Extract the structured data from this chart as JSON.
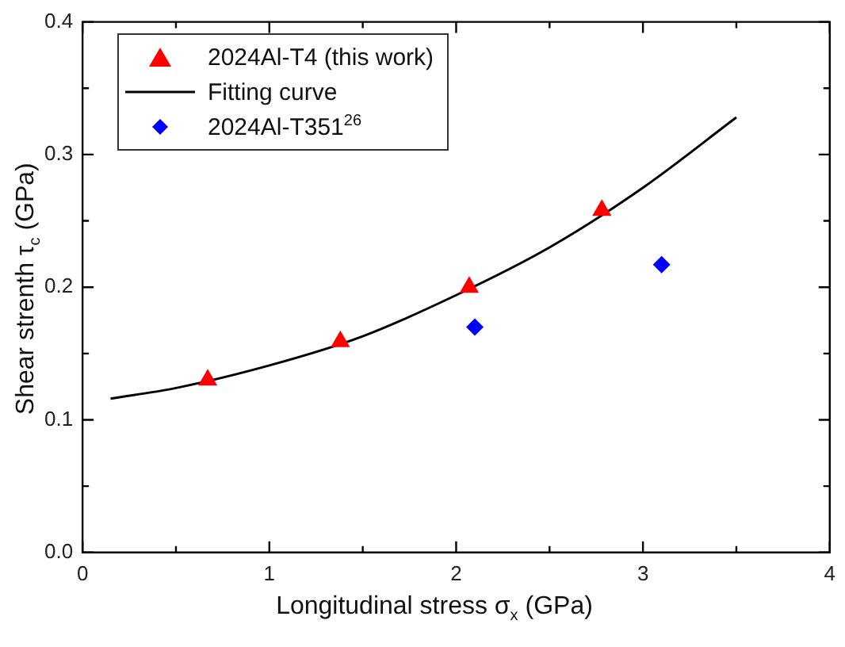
{
  "chart_data": {
    "type": "scatter",
    "xlabel": "Longitudinal stress  σ$_{x}$ (GPa)",
    "ylabel": "Shear strenth  τ$_{c}$  (GPa)",
    "xlim": [
      0,
      4
    ],
    "ylim": [
      0,
      0.4
    ],
    "xticks": [
      0,
      {
        "value": 0.5,
        "label": null
      },
      1,
      {
        "value": 1.5,
        "label": null
      },
      2,
      {
        "value": 2.5,
        "label": null
      },
      3,
      {
        "value": 3.5,
        "label": null
      },
      4
    ],
    "yticks": [
      {
        "value": 0,
        "label": "0.0"
      },
      {
        "value": 0.05,
        "label": null
      },
      0.1,
      {
        "value": 0.15,
        "label": null
      },
      0.2,
      {
        "value": 0.25,
        "label": null
      },
      0.3,
      {
        "value": 0.35,
        "label": null
      },
      0.4
    ],
    "grid": false,
    "legend": "top left",
    "series": [
      {
        "name": "2024Al-T4 (this work)",
        "type": "scatter",
        "marker": "triangle",
        "color": "#ff0000",
        "x": [
          0.67,
          1.38,
          2.07,
          2.78
        ],
        "values": [
          0.13,
          0.159,
          0.2,
          0.258
        ]
      },
      {
        "name": "Fitting curve",
        "type": "line",
        "marker": "none",
        "line_style": "solid",
        "color": "#000000",
        "x": [
          0.15,
          0.5,
          1,
          1.5,
          2,
          2.5,
          3,
          3.5
        ],
        "values": [
          0.116,
          0.124,
          0.141,
          0.163,
          0.194,
          0.23,
          0.275,
          0.328
        ]
      },
      {
        "name": "2024Al-T351$^{26}$",
        "type": "scatter",
        "marker": "diamond",
        "color": "#0000ff",
        "x": [
          2.1,
          3.1
        ],
        "values": [
          0.17,
          0.217
        ]
      }
    ]
  }
}
